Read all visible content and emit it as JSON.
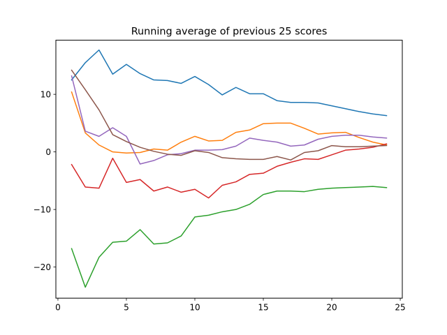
{
  "chart_data": {
    "type": "line",
    "title": "Running average of previous 25 scores",
    "xlabel": "",
    "ylabel": "",
    "xlim": [
      -0.15,
      25.15
    ],
    "ylim": [
      -25.4,
      19.4
    ],
    "xticks": [
      0,
      5,
      10,
      15,
      20,
      25
    ],
    "yticks": [
      -20,
      -10,
      0,
      10
    ],
    "grid": false,
    "legend": "none",
    "x": [
      1,
      2,
      3,
      4,
      5,
      6,
      7,
      8,
      9,
      10,
      11,
      12,
      13,
      14,
      15,
      16,
      17,
      18,
      19,
      20,
      21,
      22,
      23,
      24
    ],
    "series": [
      {
        "color": "#1f77b4",
        "values": [
          12.5,
          15.5,
          17.7,
          13.5,
          15.2,
          13.6,
          12.5,
          12.4,
          11.9,
          13.1,
          11.7,
          9.9,
          11.2,
          10.1,
          10.1,
          8.9,
          8.6,
          8.6,
          8.5,
          8.0,
          7.5,
          7.0,
          6.6,
          6.3
        ]
      },
      {
        "color": "#ff7f0e",
        "values": [
          10.4,
          3.3,
          1.2,
          0.0,
          -0.2,
          -0.1,
          0.5,
          0.3,
          1.7,
          2.7,
          1.9,
          2.0,
          3.4,
          3.8,
          4.9,
          5.0,
          5.0,
          4.1,
          3.1,
          3.3,
          3.4,
          2.5,
          1.7,
          1.2
        ]
      },
      {
        "color": "#2ca02c",
        "values": [
          -16.8,
          -23.5,
          -18.3,
          -15.7,
          -15.5,
          -13.5,
          -16.0,
          -15.8,
          -14.6,
          -11.3,
          -11.0,
          -10.4,
          -10.0,
          -9.1,
          -7.4,
          -6.8,
          -6.8,
          -6.9,
          -6.5,
          -6.3,
          -6.2,
          -6.1,
          -6.0,
          -6.2
        ]
      },
      {
        "color": "#d62728",
        "values": [
          -2.2,
          -6.1,
          -6.3,
          -1.1,
          -5.3,
          -4.8,
          -6.8,
          -6.1,
          -7.0,
          -6.5,
          -8.0,
          -5.8,
          -5.2,
          -3.9,
          -3.7,
          -2.5,
          -1.8,
          -1.2,
          -1.3,
          -0.5,
          0.3,
          0.5,
          0.8,
          1.4
        ]
      },
      {
        "color": "#9467bd",
        "values": [
          13.2,
          3.6,
          2.7,
          4.2,
          2.7,
          -2.1,
          -1.5,
          -0.5,
          -0.3,
          0.3,
          0.3,
          0.4,
          1.0,
          2.4,
          2.0,
          1.7,
          1.0,
          1.2,
          2.2,
          2.7,
          2.9,
          2.9,
          2.6,
          2.4
        ]
      },
      {
        "color": "#8c564b",
        "values": [
          14.2,
          10.8,
          7.3,
          3.0,
          1.8,
          0.8,
          0.1,
          -0.4,
          -0.6,
          0.2,
          -0.1,
          -1.0,
          -1.2,
          -1.3,
          -1.3,
          -0.8,
          -1.4,
          -0.1,
          0.2,
          1.1,
          0.9,
          0.9,
          1.0,
          1.1
        ]
      }
    ]
  }
}
